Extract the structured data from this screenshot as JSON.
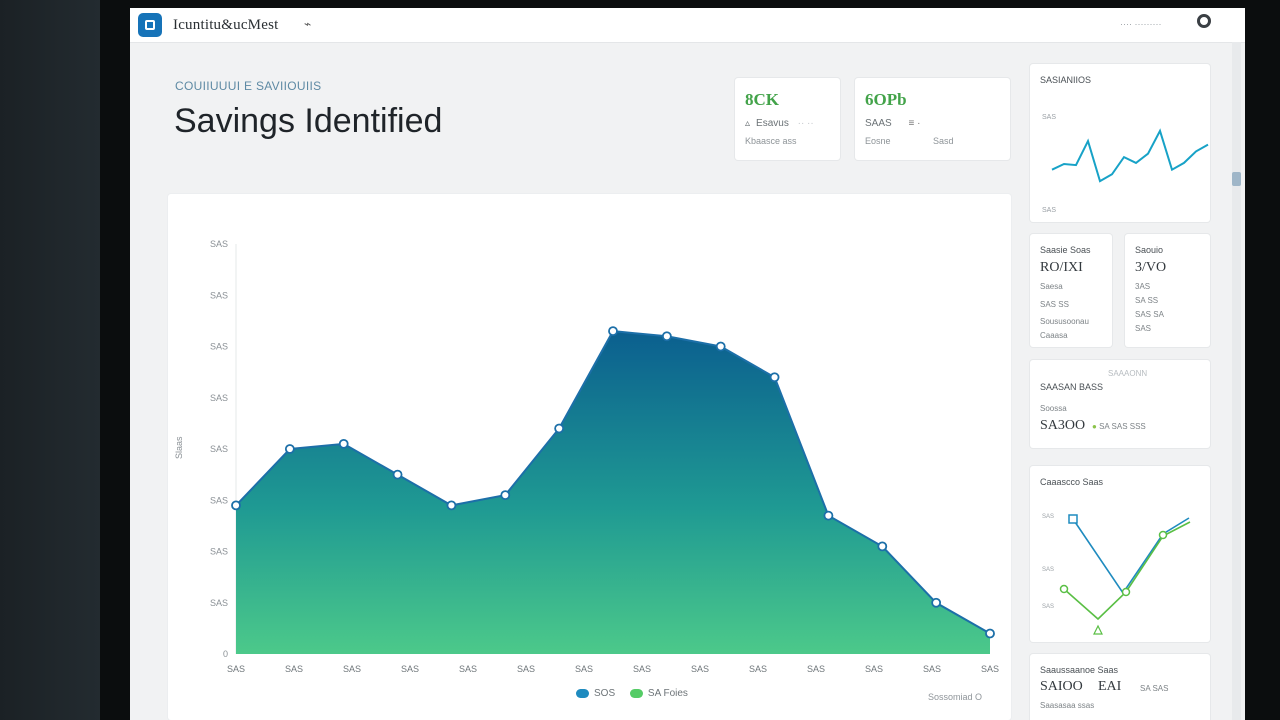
{
  "app": {
    "name": "Icuntitu&ucMest",
    "pin_glyph": "⌁",
    "top_right": "···· ·········"
  },
  "page": {
    "breadcrumb": "COUIIUUUI E SAVIIOUIIS",
    "title": "Savings Identified"
  },
  "kpis": [
    {
      "value": "8CK",
      "row": "Esavus",
      "row_faint": "·· ··",
      "sub": "Kbaasce ass",
      "icon": "▵"
    },
    {
      "value": "6OPb",
      "row": "SAAS",
      "row_faint": "≡ ·",
      "sub": "Eosne",
      "sub2": "Sasd",
      "icon": ""
    }
  ],
  "chart_data": {
    "type": "area",
    "ylabel": "Slaas",
    "y_ticks": [
      "SAS",
      "SAS",
      "SAS",
      "SAS",
      "SAS",
      "SAS",
      "SAS",
      "SAS",
      "0"
    ],
    "x_ticks": [
      "SAS",
      "SAS",
      "SAS",
      "SAS",
      "SAS",
      "SAS",
      "SAS",
      "SAS",
      "SAS",
      "SAS",
      "SAS",
      "SAS",
      "SAS",
      "SAS"
    ],
    "values": [
      29,
      40,
      41,
      35,
      29,
      31,
      44,
      63,
      62,
      60,
      54,
      27,
      21,
      10,
      4
    ],
    "ylim": [
      0,
      80
    ],
    "legend": [
      {
        "label": "SOS",
        "color": "#1f8bbf"
      },
      {
        "label": "SA Foies",
        "color": "#55cc66"
      }
    ],
    "footer": "Sossomiad O"
  },
  "right": {
    "trend": {
      "title": "SASIANIIOS",
      "y_label": "SAS",
      "x_label": "SAS",
      "values": [
        30,
        35,
        34,
        55,
        20,
        26,
        41,
        36,
        44,
        64,
        30,
        36,
        46,
        52
      ]
    },
    "stat1": {
      "title": "Saasie Soas",
      "value": "RO/IXI",
      "l1": "Saesa",
      "l2": "SAS SS",
      "l3": "Soususoonau",
      "l4": "Caaasa"
    },
    "stat2": {
      "title": "Saouio",
      "value": "3/VO",
      "l1": "3AS",
      "l2": "SA SS",
      "l3": "SAS SA",
      "l4": "SAS"
    },
    "stat3": {
      "header": "SAAAONN",
      "title": "SAASAN BASS",
      "sub": "Soossa",
      "value": "SA3OO",
      "badge": "SA SAS SSS"
    },
    "cross": {
      "title": "Caaascco Saas",
      "y_ticks": [
        "SAS",
        "SAS",
        "SAS"
      ]
    },
    "stat4": {
      "title": "Saaussaanoe Saas",
      "value": "SAIOO",
      "v2": "EAI",
      "v3": "SA SAS",
      "sub": "Saasasaa ssas"
    }
  }
}
